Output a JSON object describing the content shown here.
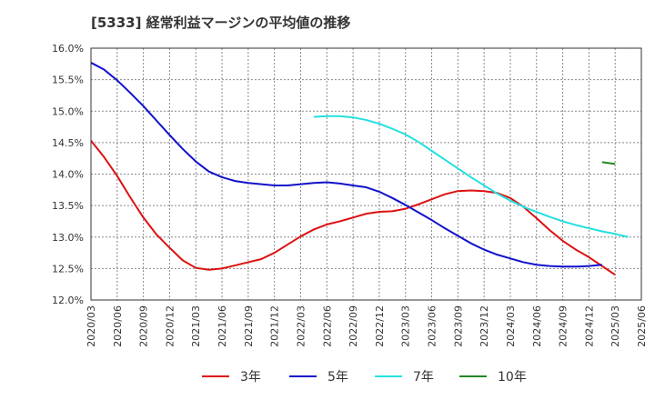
{
  "chart_data": {
    "type": "line",
    "title": "[5333]  経常利益マージンの平均値の推移",
    "xlabel": "",
    "ylabel": "",
    "ylim": [
      12.0,
      16.0
    ],
    "y_ticks": [
      "12.0%",
      "12.5%",
      "13.0%",
      "13.5%",
      "14.0%",
      "14.5%",
      "15.0%",
      "15.5%",
      "16.0%"
    ],
    "y_tick_values": [
      12.0,
      12.5,
      13.0,
      13.5,
      14.0,
      14.5,
      15.0,
      15.5,
      16.0
    ],
    "x_ticks": [
      "2020/03",
      "2020/06",
      "2020/09",
      "2020/12",
      "2021/03",
      "2021/06",
      "2021/09",
      "2021/12",
      "2022/03",
      "2022/06",
      "2022/09",
      "2022/12",
      "2023/03",
      "2023/06",
      "2023/09",
      "2023/12",
      "2024/03",
      "2024/06",
      "2024/09",
      "2024/12",
      "2025/03",
      "2025/06"
    ],
    "grid": true,
    "legend_position": "bottom",
    "series": [
      {
        "name": "3年",
        "color": "#dd1111",
        "start_index": 0,
        "values": [
          14.53,
          14.27,
          13.97,
          13.63,
          13.31,
          13.04,
          12.83,
          12.63,
          12.51,
          12.48,
          12.5,
          12.55,
          12.6,
          12.65,
          12.75,
          12.88,
          13.01,
          13.12,
          13.2,
          13.25,
          13.31,
          13.37,
          13.4,
          13.41,
          13.45,
          13.52,
          13.6,
          13.68,
          13.73,
          13.74,
          13.73,
          13.7,
          13.62,
          13.48,
          13.3,
          13.11,
          12.94,
          12.8,
          12.68,
          12.54,
          12.4
        ]
      },
      {
        "name": "5年",
        "color": "#1111cc",
        "start_index": 0,
        "values": [
          15.77,
          15.66,
          15.49,
          15.29,
          15.08,
          14.85,
          14.62,
          14.4,
          14.2,
          14.04,
          13.95,
          13.89,
          13.86,
          13.84,
          13.82,
          13.82,
          13.84,
          13.86,
          13.87,
          13.85,
          13.82,
          13.79,
          13.72,
          13.62,
          13.51,
          13.39,
          13.27,
          13.14,
          13.02,
          12.9,
          12.8,
          12.72,
          12.66,
          12.6,
          12.56,
          12.54,
          12.53,
          12.53,
          12.54,
          12.56
        ]
      },
      {
        "name": "7年",
        "color": "#22e0e0",
        "start_index": 17,
        "values": [
          14.91,
          14.92,
          14.92,
          14.9,
          14.86,
          14.8,
          14.72,
          14.63,
          14.51,
          14.37,
          14.23,
          14.09,
          13.95,
          13.82,
          13.69,
          13.58,
          13.48,
          13.4,
          13.32,
          13.25,
          13.19,
          13.14,
          13.09,
          13.05,
          13.0
        ]
      },
      {
        "name": "10年",
        "color": "#228822",
        "start_index": 39,
        "values": [
          14.19,
          14.16
        ]
      }
    ]
  }
}
